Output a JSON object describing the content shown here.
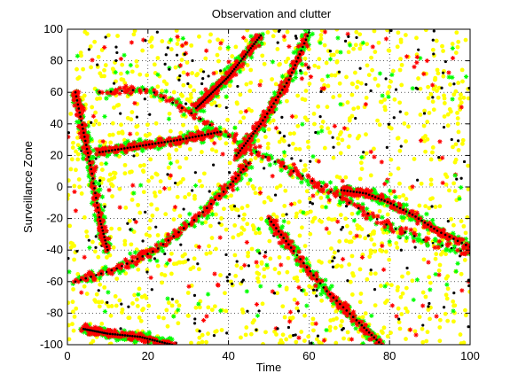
{
  "chart_data": {
    "type": "scatter",
    "title": "Observation and clutter",
    "xlabel": "Time",
    "ylabel": "Surveillance Zone",
    "xlim": [
      0,
      100
    ],
    "ylim": [
      -100,
      100
    ],
    "xticks": [
      0,
      20,
      40,
      60,
      80,
      100
    ],
    "yticks": [
      -100,
      -80,
      -60,
      -40,
      -20,
      0,
      20,
      40,
      60,
      80,
      100
    ],
    "grid": true,
    "colors": {
      "clutter": "#ffff00",
      "observation_low": "#00ff00",
      "observation": "#ff0000",
      "true_track": "#000000"
    },
    "tracks": [
      {
        "points": [
          [
            2,
            -60
          ],
          [
            12,
            -52
          ],
          [
            22,
            -40
          ],
          [
            32,
            -20
          ],
          [
            40,
            0
          ],
          [
            45,
            15
          ]
        ]
      },
      {
        "points": [
          [
            8,
            60
          ],
          [
            20,
            62
          ],
          [
            30,
            48
          ],
          [
            40,
            32
          ],
          [
            50,
            18
          ],
          [
            60,
            5
          ],
          [
            70,
            -10
          ],
          [
            80,
            -25
          ],
          [
            90,
            -35
          ],
          [
            100,
            -42
          ]
        ]
      },
      {
        "points": [
          [
            8,
            22
          ],
          [
            18,
            26
          ],
          [
            28,
            30
          ],
          [
            38,
            35
          ]
        ]
      },
      {
        "points": [
          [
            32,
            50
          ],
          [
            40,
            70
          ],
          [
            48,
            96
          ]
        ]
      },
      {
        "points": [
          [
            42,
            20
          ],
          [
            48,
            40
          ],
          [
            55,
            68
          ],
          [
            60,
            98
          ]
        ]
      },
      {
        "points": [
          [
            50,
            -20
          ],
          [
            56,
            -40
          ],
          [
            64,
            -65
          ],
          [
            72,
            -85
          ],
          [
            78,
            -100
          ]
        ]
      },
      {
        "points": [
          [
            68,
            -2
          ],
          [
            74,
            -4
          ],
          [
            80,
            -10
          ],
          [
            86,
            -18
          ],
          [
            92,
            -28
          ],
          [
            100,
            -38
          ]
        ]
      },
      {
        "points": [
          [
            4,
            -90
          ],
          [
            10,
            -93
          ],
          [
            18,
            -95
          ],
          [
            26,
            -100
          ]
        ]
      },
      {
        "points": [
          [
            2,
            60
          ],
          [
            4,
            35
          ],
          [
            6,
            10
          ],
          [
            8,
            -20
          ],
          [
            10,
            -40
          ]
        ]
      }
    ],
    "clutter_count": 1200,
    "true_point_count": 220
  }
}
